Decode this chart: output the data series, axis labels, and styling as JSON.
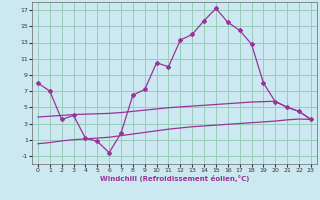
{
  "background_color": "#cce8f0",
  "grid_color": "#99ccbb",
  "line_color": "#993399",
  "xlabel": "Windchill (Refroidissement éolien,°C)",
  "xlim": [
    -0.5,
    23.5
  ],
  "ylim": [
    -2,
    18
  ],
  "xticks": [
    0,
    1,
    2,
    3,
    4,
    5,
    6,
    7,
    8,
    9,
    10,
    11,
    12,
    13,
    14,
    15,
    16,
    17,
    18,
    19,
    20,
    21,
    22,
    23
  ],
  "yticks": [
    -1,
    1,
    3,
    5,
    7,
    9,
    11,
    13,
    15,
    17
  ],
  "main_line_x": [
    0,
    1,
    2,
    3,
    4,
    5,
    6,
    7,
    8,
    9,
    10,
    11,
    12,
    13,
    14,
    15,
    16,
    17,
    18,
    19,
    20,
    21,
    22,
    23
  ],
  "main_line_y": [
    8,
    7,
    3.5,
    4.0,
    1.2,
    0.8,
    -0.6,
    1.8,
    6.5,
    7.2,
    10.5,
    10.0,
    13.3,
    14.0,
    15.7,
    17.2,
    15.5,
    14.5,
    12.8,
    8.0,
    5.7,
    5.0,
    4.5,
    3.5
  ],
  "upper_band_x": [
    0,
    1,
    2,
    3,
    4,
    5,
    6,
    7,
    8,
    9,
    10,
    11,
    12,
    13,
    14,
    15,
    16,
    17,
    18,
    19,
    20,
    21,
    22,
    23
  ],
  "upper_band_y": [
    3.8,
    3.9,
    4.0,
    4.1,
    4.15,
    4.2,
    4.25,
    4.35,
    4.5,
    4.65,
    4.8,
    4.95,
    5.05,
    5.15,
    5.25,
    5.35,
    5.45,
    5.55,
    5.65,
    5.7,
    5.75,
    5.0,
    4.5,
    3.5
  ],
  "lower_band_x": [
    0,
    1,
    2,
    3,
    4,
    5,
    6,
    7,
    8,
    9,
    10,
    11,
    12,
    13,
    14,
    15,
    16,
    17,
    18,
    19,
    20,
    21,
    22,
    23
  ],
  "lower_band_y": [
    0.5,
    0.65,
    0.85,
    1.0,
    1.1,
    1.2,
    1.3,
    1.5,
    1.7,
    1.9,
    2.1,
    2.3,
    2.45,
    2.6,
    2.7,
    2.8,
    2.9,
    3.0,
    3.1,
    3.2,
    3.3,
    3.45,
    3.55,
    3.5
  ]
}
